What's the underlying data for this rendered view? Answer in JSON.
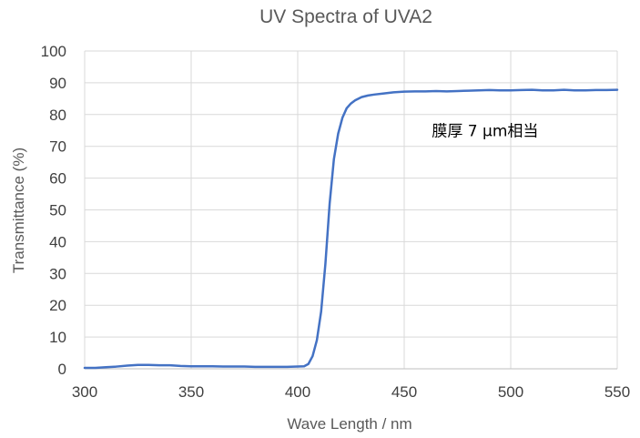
{
  "chart_data": {
    "type": "line",
    "title": "UV Spectra of UVA2",
    "xlabel": "Wave Length / nm",
    "ylabel": "Transmittance (%)",
    "xlim": [
      300,
      550
    ],
    "ylim": [
      0,
      100
    ],
    "xticks": [
      300,
      350,
      400,
      450,
      500,
      550
    ],
    "yticks": [
      0,
      10,
      20,
      30,
      40,
      50,
      60,
      70,
      80,
      90,
      100
    ],
    "grid": true,
    "legend": "none",
    "annotation": {
      "text": "膜厚 7 µm相当",
      "x": 463,
      "y": 75
    },
    "series": [
      {
        "color": "#4472c4",
        "x": [
          300,
          305,
          310,
          315,
          320,
          325,
          330,
          335,
          340,
          345,
          350,
          355,
          360,
          365,
          370,
          375,
          380,
          385,
          390,
          395,
          400,
          403,
          405,
          407,
          409,
          411,
          413,
          415,
          417,
          419,
          421,
          423,
          425,
          427,
          430,
          433,
          436,
          440,
          445,
          450,
          455,
          460,
          465,
          470,
          475,
          480,
          485,
          490,
          495,
          500,
          505,
          510,
          515,
          520,
          525,
          530,
          535,
          540,
          545,
          550
        ],
        "y": [
          0.3,
          0.3,
          0.5,
          0.7,
          1.0,
          1.2,
          1.2,
          1.1,
          1.1,
          0.9,
          0.8,
          0.8,
          0.8,
          0.7,
          0.7,
          0.7,
          0.6,
          0.6,
          0.6,
          0.6,
          0.7,
          0.8,
          1.5,
          4,
          9,
          18,
          33,
          52,
          66,
          74,
          79,
          82,
          83.5,
          84.5,
          85.5,
          86,
          86.3,
          86.6,
          87,
          87.2,
          87.3,
          87.3,
          87.4,
          87.3,
          87.4,
          87.5,
          87.6,
          87.7,
          87.6,
          87.6,
          87.7,
          87.8,
          87.6,
          87.6,
          87.8,
          87.6,
          87.6,
          87.7,
          87.7,
          87.8
        ]
      }
    ]
  }
}
